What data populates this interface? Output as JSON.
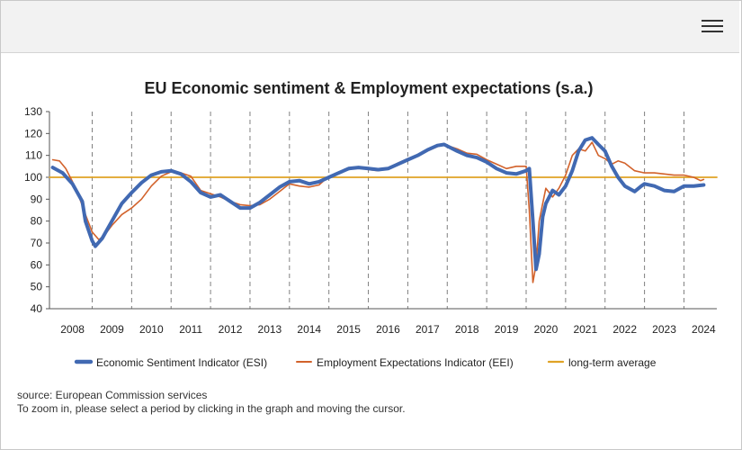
{
  "chart_data": {
    "type": "line",
    "title": "EU Economic sentiment & Employment expectations (s.a.)",
    "xlabel": "",
    "ylabel": "",
    "ylim": [
      40,
      130
    ],
    "yticks": [
      40,
      50,
      60,
      70,
      80,
      90,
      100,
      110,
      120,
      130
    ],
    "xlim": [
      2007.917,
      2024.833
    ],
    "x_tick_labels": [
      "2008",
      "2009",
      "2010",
      "2011",
      "2012",
      "2013",
      "2014",
      "2015",
      "2016",
      "2017",
      "2018",
      "2019",
      "2020",
      "2021",
      "2022",
      "2023",
      "2024"
    ],
    "vertical_gridlines": true,
    "horizontal_gridlines": false,
    "legend_position": "bottom",
    "series": [
      {
        "name": "Economic Sentiment Indicator (ESI)",
        "color": "#4169b2",
        "x": [
          2008.0,
          2008.25,
          2008.5,
          2008.75,
          2008.83,
          2009.0,
          2009.08,
          2009.25,
          2009.5,
          2009.75,
          2010.0,
          2010.25,
          2010.5,
          2010.75,
          2011.0,
          2011.25,
          2011.5,
          2011.75,
          2012.0,
          2012.25,
          2012.5,
          2012.75,
          2013.0,
          2013.25,
          2013.5,
          2013.75,
          2014.0,
          2014.25,
          2014.5,
          2014.75,
          2015.0,
          2015.25,
          2015.5,
          2015.75,
          2016.0,
          2016.25,
          2016.5,
          2016.75,
          2017.0,
          2017.25,
          2017.5,
          2017.75,
          2017.92,
          2018.25,
          2018.5,
          2018.75,
          2019.0,
          2019.25,
          2019.5,
          2019.75,
          2020.0,
          2020.08,
          2020.17,
          2020.25,
          2020.33,
          2020.42,
          2020.5,
          2020.67,
          2020.83,
          2021.0,
          2021.17,
          2021.33,
          2021.5,
          2021.67,
          2021.83,
          2022.0,
          2022.17,
          2022.33,
          2022.5,
          2022.75,
          2022.92,
          2023.0,
          2023.25,
          2023.5,
          2023.75,
          2024.0,
          2024.25,
          2024.5
        ],
        "values": [
          104.5,
          102,
          97,
          89,
          80,
          71,
          68.5,
          72,
          80,
          88,
          93,
          97.5,
          101,
          102.5,
          103,
          101.5,
          98,
          93,
          91,
          92,
          89,
          86,
          86,
          88.5,
          92,
          95.5,
          98,
          98.5,
          97,
          98,
          100,
          102,
          104,
          104.5,
          104,
          103.5,
          104,
          106,
          108,
          110,
          112.5,
          114.5,
          115,
          112,
          110,
          109,
          107,
          104,
          102,
          101.5,
          103,
          104,
          80,
          58,
          65,
          82,
          88,
          94,
          92,
          96,
          103,
          112,
          117,
          118,
          115,
          112,
          105,
          100,
          96,
          93.5,
          96,
          97,
          96,
          94,
          93.5,
          96,
          96,
          96.5
        ]
      },
      {
        "name": "Employment Expectations Indicator (EEI)",
        "color": "#d2622b",
        "x": [
          2008.0,
          2008.17,
          2008.33,
          2008.5,
          2008.67,
          2008.83,
          2009.0,
          2009.17,
          2009.33,
          2009.5,
          2009.75,
          2010.0,
          2010.25,
          2010.5,
          2010.75,
          2011.0,
          2011.25,
          2011.5,
          2011.75,
          2012.0,
          2012.25,
          2012.5,
          2012.75,
          2013.0,
          2013.25,
          2013.5,
          2013.75,
          2014.0,
          2014.25,
          2014.5,
          2014.75,
          2015.0,
          2015.25,
          2015.5,
          2015.75,
          2016.0,
          2016.25,
          2016.5,
          2016.75,
          2017.0,
          2017.25,
          2017.5,
          2017.75,
          2017.92,
          2018.25,
          2018.5,
          2018.75,
          2019.0,
          2019.25,
          2019.5,
          2019.75,
          2020.0,
          2020.08,
          2020.17,
          2020.25,
          2020.33,
          2020.42,
          2020.5,
          2020.67,
          2020.83,
          2021.0,
          2021.17,
          2021.33,
          2021.5,
          2021.67,
          2021.83,
          2022.0,
          2022.17,
          2022.33,
          2022.5,
          2022.75,
          2023.0,
          2023.25,
          2023.5,
          2023.75,
          2024.0,
          2024.25,
          2024.42,
          2024.5
        ],
        "values": [
          108,
          107.5,
          104,
          98,
          91,
          83,
          75,
          71.5,
          74,
          78,
          83,
          86,
          90,
          96,
          100.5,
          102.5,
          102,
          100.5,
          94,
          92.5,
          91,
          89,
          87.5,
          87,
          87.5,
          90,
          93.5,
          97,
          96,
          95.5,
          96.5,
          100.5,
          102,
          103.5,
          104.5,
          103.5,
          103,
          104,
          106.5,
          108.5,
          110,
          112,
          114,
          115,
          113,
          111,
          110.5,
          108,
          106,
          104,
          105,
          105,
          85,
          52,
          60,
          80,
          88,
          95,
          91,
          95,
          101,
          110,
          113,
          112,
          116,
          110,
          108.5,
          106,
          107.5,
          106.5,
          103,
          102,
          102,
          101.5,
          101,
          101,
          100,
          98.5,
          99
        ]
      },
      {
        "name": "long-term average",
        "color": "#e0a325",
        "x": [
          2007.917,
          2024.833
        ],
        "values": [
          100,
          100
        ]
      }
    ]
  },
  "footer": {
    "source": "source: European Commission services",
    "instruction": "To zoom in, please select a period by clicking in the graph and moving the cursor."
  }
}
